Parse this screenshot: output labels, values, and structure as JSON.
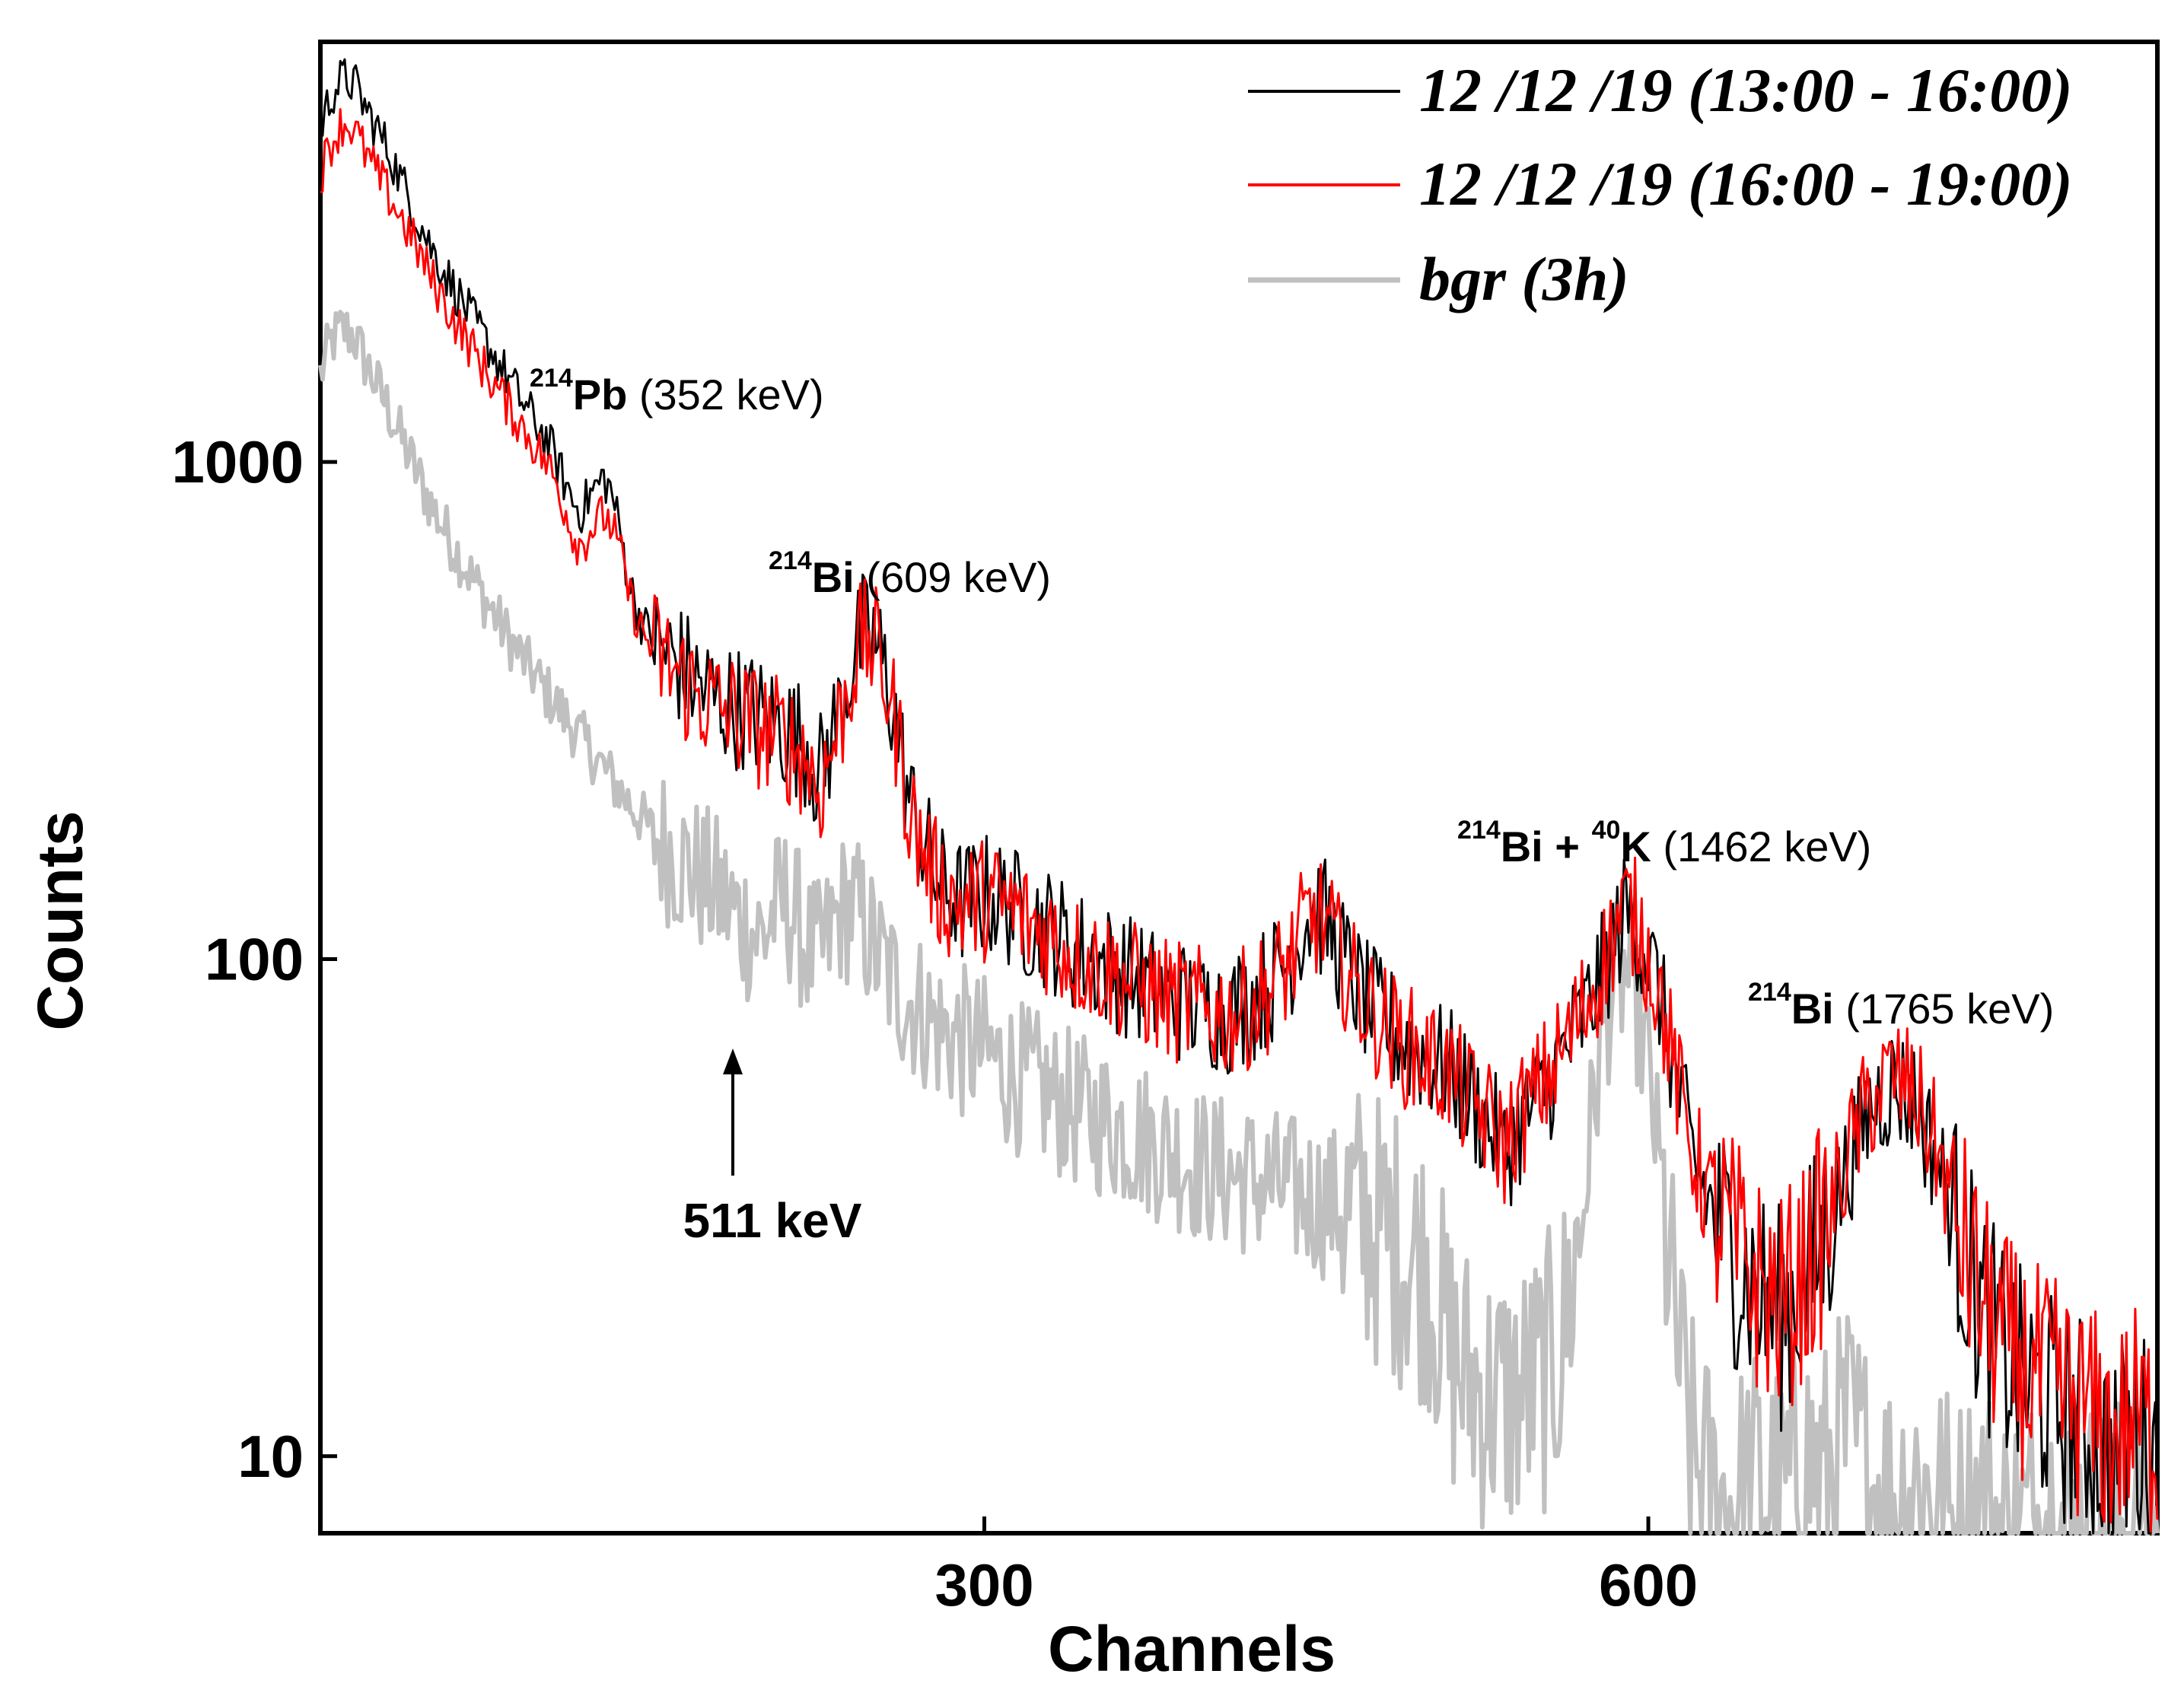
{
  "chart_data": {
    "type": "line",
    "title": "",
    "xlabel": "Channels",
    "ylabel": "Counts",
    "xscale": "linear",
    "yscale": "log",
    "xlim": [
      0,
      830
    ],
    "ylim": [
      7,
      7000
    ],
    "x_ticks": [
      300,
      600
    ],
    "y_ticks": [
      10,
      100,
      1000
    ],
    "x_tick_labels": [
      "300",
      "600"
    ],
    "y_tick_labels": [
      "10",
      "100",
      "1000"
    ],
    "legend_position": "top-right",
    "series": [
      {
        "name": "12 /12 /19 (13:00 - 16:00)",
        "color": "#000000",
        "points": [
          [
            0,
            4700
          ],
          [
            5,
            5500
          ],
          [
            10,
            5900
          ],
          [
            15,
            5800
          ],
          [
            20,
            5200
          ],
          [
            30,
            4300
          ],
          [
            40,
            3400
          ],
          [
            50,
            2700
          ],
          [
            60,
            2250
          ],
          [
            70,
            1900
          ],
          [
            80,
            1600
          ],
          [
            90,
            1350
          ],
          [
            100,
            1150
          ],
          [
            105,
            1050
          ],
          [
            110,
            920
          ],
          [
            115,
            820
          ],
          [
            118,
            800
          ],
          [
            122,
            860
          ],
          [
            128,
            930
          ],
          [
            132,
            860
          ],
          [
            136,
            700
          ],
          [
            140,
            560
          ],
          [
            145,
            480
          ],
          [
            150,
            440
          ],
          [
            160,
            400
          ],
          [
            170,
            360
          ],
          [
            180,
            330
          ],
          [
            190,
            320
          ],
          [
            200,
            305
          ],
          [
            210,
            290
          ],
          [
            220,
            270
          ],
          [
            225,
            230
          ],
          [
            230,
            270
          ],
          [
            235,
            320
          ],
          [
            240,
            390
          ],
          [
            245,
            450
          ],
          [
            250,
            440
          ],
          [
            255,
            380
          ],
          [
            260,
            300
          ],
          [
            265,
            220
          ],
          [
            270,
            180
          ],
          [
            275,
            160
          ],
          [
            280,
            140
          ],
          [
            290,
            130
          ],
          [
            300,
            135
          ],
          [
            310,
            130
          ],
          [
            320,
            120
          ],
          [
            330,
            115
          ],
          [
            340,
            105
          ],
          [
            350,
            100
          ],
          [
            360,
            95
          ],
          [
            370,
            90
          ],
          [
            380,
            85
          ],
          [
            390,
            82
          ],
          [
            400,
            80
          ],
          [
            410,
            78
          ],
          [
            420,
            82
          ],
          [
            430,
            90
          ],
          [
            440,
            105
          ],
          [
            445,
            120
          ],
          [
            450,
            125
          ],
          [
            455,
            118
          ],
          [
            460,
            105
          ],
          [
            470,
            85
          ],
          [
            480,
            75
          ],
          [
            490,
            68
          ],
          [
            500,
            64
          ],
          [
            510,
            60
          ],
          [
            520,
            52
          ],
          [
            530,
            45
          ],
          [
            535,
            40
          ],
          [
            540,
            45
          ],
          [
            550,
            52
          ],
          [
            560,
            62
          ],
          [
            570,
            75
          ],
          [
            578,
            90
          ],
          [
            585,
            110
          ],
          [
            590,
            125
          ],
          [
            595,
            115
          ],
          [
            600,
            100
          ],
          [
            605,
            85
          ],
          [
            610,
            65
          ],
          [
            615,
            50
          ],
          [
            620,
            40
          ],
          [
            630,
            30
          ],
          [
            640,
            25
          ],
          [
            650,
            21
          ],
          [
            660,
            19
          ],
          [
            670,
            22
          ],
          [
            680,
            28
          ],
          [
            690,
            38
          ],
          [
            700,
            50
          ],
          [
            710,
            56
          ],
          [
            720,
            52
          ],
          [
            730,
            40
          ],
          [
            740,
            28
          ],
          [
            750,
            20
          ],
          [
            760,
            16
          ],
          [
            770,
            14
          ],
          [
            780,
            13
          ],
          [
            790,
            12
          ],
          [
            800,
            11
          ],
          [
            810,
            10
          ],
          [
            820,
            11
          ],
          [
            830,
            10
          ]
        ]
      },
      {
        "name": "12 /12 /19 (16:00 - 19:00)",
        "color": "#ff0000",
        "points": [
          [
            0,
            3800
          ],
          [
            5,
            4400
          ],
          [
            10,
            4800
          ],
          [
            15,
            4700
          ],
          [
            20,
            4200
          ],
          [
            30,
            3500
          ],
          [
            40,
            2900
          ],
          [
            50,
            2350
          ],
          [
            60,
            1950
          ],
          [
            70,
            1650
          ],
          [
            80,
            1400
          ],
          [
            90,
            1200
          ],
          [
            100,
            1030
          ],
          [
            105,
            940
          ],
          [
            110,
            820
          ],
          [
            115,
            700
          ],
          [
            118,
            680
          ],
          [
            122,
            730
          ],
          [
            128,
            780
          ],
          [
            132,
            740
          ],
          [
            136,
            640
          ],
          [
            140,
            530
          ],
          [
            145,
            460
          ],
          [
            150,
            420
          ],
          [
            160,
            380
          ],
          [
            170,
            340
          ],
          [
            180,
            320
          ],
          [
            190,
            305
          ],
          [
            200,
            290
          ],
          [
            210,
            275
          ],
          [
            220,
            255
          ],
          [
            225,
            215
          ],
          [
            230,
            255
          ],
          [
            235,
            305
          ],
          [
            240,
            380
          ],
          [
            245,
            440
          ],
          [
            250,
            430
          ],
          [
            255,
            370
          ],
          [
            260,
            295
          ],
          [
            265,
            215
          ],
          [
            270,
            175
          ],
          [
            275,
            155
          ],
          [
            280,
            138
          ],
          [
            290,
            128
          ],
          [
            300,
            132
          ],
          [
            310,
            128
          ],
          [
            320,
            118
          ],
          [
            330,
            112
          ],
          [
            340,
            102
          ],
          [
            350,
            98
          ],
          [
            360,
            93
          ],
          [
            370,
            88
          ],
          [
            380,
            84
          ],
          [
            390,
            81
          ],
          [
            400,
            79
          ],
          [
            410,
            77
          ],
          [
            420,
            80
          ],
          [
            430,
            88
          ],
          [
            440,
            102
          ],
          [
            445,
            118
          ],
          [
            450,
            122
          ],
          [
            455,
            116
          ],
          [
            460,
            102
          ],
          [
            470,
            84
          ],
          [
            480,
            74
          ],
          [
            490,
            67
          ],
          [
            500,
            63
          ],
          [
            510,
            59
          ],
          [
            520,
            51
          ],
          [
            530,
            46
          ],
          [
            535,
            42
          ],
          [
            540,
            47
          ],
          [
            550,
            54
          ],
          [
            560,
            64
          ],
          [
            570,
            78
          ],
          [
            578,
            94
          ],
          [
            585,
            114
          ],
          [
            590,
            128
          ],
          [
            595,
            118
          ],
          [
            600,
            102
          ],
          [
            605,
            86
          ],
          [
            610,
            66
          ],
          [
            615,
            51
          ],
          [
            620,
            41
          ],
          [
            630,
            31
          ],
          [
            640,
            26
          ],
          [
            650,
            22
          ],
          [
            660,
            20
          ],
          [
            670,
            23
          ],
          [
            680,
            29
          ],
          [
            690,
            40
          ],
          [
            700,
            52
          ],
          [
            710,
            58
          ],
          [
            720,
            54
          ],
          [
            730,
            42
          ],
          [
            740,
            29
          ],
          [
            750,
            21
          ],
          [
            760,
            17
          ],
          [
            770,
            15
          ],
          [
            780,
            14
          ],
          [
            790,
            13
          ],
          [
            800,
            12
          ],
          [
            810,
            11
          ],
          [
            820,
            12
          ],
          [
            830,
            11
          ]
        ]
      },
      {
        "name": "bgr (3h)",
        "color": "#c0c0c0",
        "points": [
          [
            0,
            1500
          ],
          [
            5,
            1750
          ],
          [
            10,
            1850
          ],
          [
            15,
            1800
          ],
          [
            20,
            1600
          ],
          [
            30,
            1300
          ],
          [
            40,
            1030
          ],
          [
            50,
            820
          ],
          [
            60,
            680
          ],
          [
            70,
            570
          ],
          [
            80,
            480
          ],
          [
            90,
            410
          ],
          [
            100,
            355
          ],
          [
            110,
            310
          ],
          [
            120,
            270
          ],
          [
            130,
            235
          ],
          [
            140,
            205
          ],
          [
            150,
            180
          ],
          [
            160,
            162
          ],
          [
            170,
            148
          ],
          [
            180,
            135
          ],
          [
            190,
            120
          ],
          [
            200,
            110
          ],
          [
            205,
            125
          ],
          [
            210,
            130
          ],
          [
            215,
            120
          ],
          [
            220,
            105
          ],
          [
            225,
            100
          ],
          [
            230,
            110
          ],
          [
            235,
            125
          ],
          [
            240,
            128
          ],
          [
            245,
            118
          ],
          [
            250,
            105
          ],
          [
            260,
            88
          ],
          [
            270,
            80
          ],
          [
            280,
            72
          ],
          [
            290,
            68
          ],
          [
            300,
            65
          ],
          [
            310,
            60
          ],
          [
            320,
            56
          ],
          [
            330,
            53
          ],
          [
            340,
            50
          ],
          [
            350,
            48
          ],
          [
            360,
            46
          ],
          [
            370,
            44
          ],
          [
            380,
            42
          ],
          [
            390,
            40
          ],
          [
            400,
            38
          ],
          [
            410,
            37
          ],
          [
            420,
            36
          ],
          [
            430,
            35
          ],
          [
            440,
            34
          ],
          [
            450,
            33
          ],
          [
            460,
            32
          ],
          [
            470,
            30
          ],
          [
            480,
            28
          ],
          [
            490,
            26
          ],
          [
            500,
            24
          ],
          [
            505,
            20
          ],
          [
            510,
            16
          ],
          [
            520,
            14
          ],
          [
            530,
            13
          ],
          [
            540,
            13
          ],
          [
            550,
            14
          ],
          [
            560,
            16
          ],
          [
            570,
            30
          ],
          [
            575,
            50
          ],
          [
            580,
            75
          ],
          [
            585,
            90
          ],
          [
            590,
            92
          ],
          [
            595,
            80
          ],
          [
            600,
            60
          ],
          [
            605,
            38
          ],
          [
            610,
            22
          ],
          [
            615,
            14
          ],
          [
            620,
            10
          ],
          [
            630,
            8
          ],
          [
            640,
            8
          ],
          [
            650,
            9
          ],
          [
            660,
            8
          ],
          [
            670,
            10
          ],
          [
            680,
            9
          ],
          [
            690,
            11
          ],
          [
            700,
            9
          ],
          [
            710,
            8
          ],
          [
            720,
            9
          ],
          [
            730,
            8
          ],
          [
            740,
            7
          ],
          [
            750,
            8
          ],
          [
            760,
            7
          ],
          [
            770,
            7
          ],
          [
            780,
            8
          ],
          [
            790,
            7
          ],
          [
            800,
            7
          ],
          [
            810,
            7
          ],
          [
            820,
            7
          ],
          [
            830,
            7
          ]
        ]
      }
    ],
    "annotations": [
      {
        "id": "pb214",
        "sup": "214",
        "element": "Pb",
        "text": " (352 keV)"
      },
      {
        "id": "bi214a",
        "sup": "214",
        "element": "Bi",
        "text": "  (609 keV)"
      },
      {
        "id": "bik",
        "sup": "214",
        "element": "Bi + ",
        "sup2": "40",
        "element2": "K",
        "text": "  (1462 keV)"
      },
      {
        "id": "bi214b",
        "sup": "214",
        "element": "Bi",
        "text": "  (1765 keV)"
      },
      {
        "id": "e511",
        "text": "511 keV"
      }
    ]
  }
}
